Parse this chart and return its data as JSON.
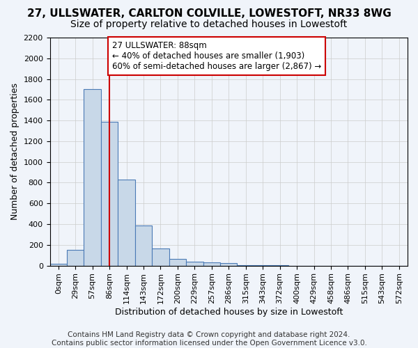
{
  "title": "27, ULLSWATER, CARLTON COLVILLE, LOWESTOFT, NR33 8WG",
  "subtitle": "Size of property relative to detached houses in Lowestoft",
  "xlabel": "Distribution of detached houses by size in Lowestoft",
  "ylabel": "Number of detached properties",
  "bar_color": "#c8d8e8",
  "bar_edge_color": "#4a7ab5",
  "background_color": "#f0f4fa",
  "grid_color": "#cccccc",
  "bin_labels": [
    "0sqm",
    "29sqm",
    "57sqm",
    "86sqm",
    "114sqm",
    "143sqm",
    "172sqm",
    "200sqm",
    "229sqm",
    "257sqm",
    "286sqm",
    "315sqm",
    "343sqm",
    "372sqm",
    "400sqm",
    "429sqm",
    "458sqm",
    "486sqm",
    "515sqm",
    "543sqm",
    "572sqm"
  ],
  "bar_values": [
    15,
    155,
    1700,
    1390,
    830,
    390,
    165,
    65,
    35,
    30,
    25,
    5,
    5,
    5,
    0,
    0,
    0,
    0,
    0,
    0,
    0
  ],
  "property_sqm": 88,
  "property_bin_index": 3,
  "annotation_text": "27 ULLSWATER: 88sqm\n← 40% of detached houses are smaller (1,903)\n60% of semi-detached houses are larger (2,867) →",
  "annotation_box_color": "#ffffff",
  "annotation_box_edge": "#cc0000",
  "vline_x": 3,
  "vline_color": "#cc0000",
  "ylim": [
    0,
    2200
  ],
  "yticks": [
    0,
    200,
    400,
    600,
    800,
    1000,
    1200,
    1400,
    1600,
    1800,
    2000,
    2200
  ],
  "footer_text": "Contains HM Land Registry data © Crown copyright and database right 2024.\nContains public sector information licensed under the Open Government Licence v3.0.",
  "title_fontsize": 11,
  "subtitle_fontsize": 10,
  "axis_label_fontsize": 9,
  "tick_fontsize": 8,
  "annotation_fontsize": 8.5,
  "footer_fontsize": 7.5
}
